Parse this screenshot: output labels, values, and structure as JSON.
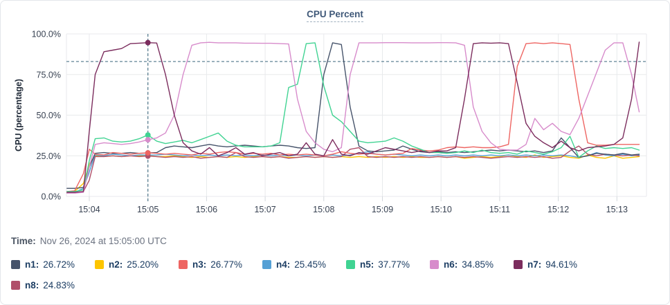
{
  "card": {
    "title": "CPU Percent",
    "time_row": {
      "label": "Time:",
      "value": "Nov 26, 2024 at 15:05:00 UTC"
    }
  },
  "colors": {
    "grid": "#e8eaec",
    "dashed_guides": "#4e7589",
    "axis_text": "#374151",
    "title_text": "#3f5878",
    "legend_text": "#1c3d63",
    "card_border": "#e3e6ea"
  },
  "legend": {
    "items": [
      {
        "name": "n1",
        "label": "n1:",
        "value": "26.72%",
        "color": "#46536a"
      },
      {
        "name": "n2",
        "label": "n2:",
        "value": "25.20%",
        "color": "#fdc500"
      },
      {
        "name": "n3",
        "label": "n3:",
        "value": "26.77%",
        "color": "#ee6562"
      },
      {
        "name": "n4",
        "label": "n4:",
        "value": "25.45%",
        "color": "#55a0d5"
      },
      {
        "name": "n5",
        "label": "n5:",
        "value": "37.77%",
        "color": "#40d392"
      },
      {
        "name": "n6",
        "label": "n6:",
        "value": "34.85%",
        "color": "#d78bcb"
      },
      {
        "name": "n7",
        "label": "n7:",
        "value": "94.61%",
        "color": "#7b2c5d"
      },
      {
        "name": "n8",
        "label": "n8:",
        "value": "24.83%",
        "color": "#b04f6a"
      }
    ]
  },
  "chart_data": {
    "type": "line",
    "title": "CPU Percent",
    "ylabel": "CPU (percentage)",
    "ylim": [
      0,
      100
    ],
    "ytick_values": [
      0,
      25,
      50,
      75,
      100
    ],
    "ytick_labels": [
      "0.0%",
      "25.0%",
      "50.0%",
      "75.0%",
      "100.0%"
    ],
    "xtick_values": [
      4,
      5,
      6,
      7,
      8,
      9,
      10,
      11,
      12,
      13
    ],
    "xtick_labels": [
      "15:04",
      "15:05",
      "15:06",
      "15:07",
      "15:08",
      "15:09",
      "15:10",
      "15:11",
      "15:12",
      "15:13"
    ],
    "x_unit": "minutes after 15:00 UTC",
    "grid": true,
    "legend_position": "bottom",
    "threshold_line": {
      "value": 83,
      "style": "dashed"
    },
    "crosshair": {
      "x": 5,
      "time": "15:05:00"
    },
    "x": [
      3.62,
      3.75,
      3.9,
      4.0,
      4.1,
      4.25,
      4.4,
      4.55,
      4.7,
      4.85,
      5.0,
      5.15,
      5.3,
      5.45,
      5.6,
      5.75,
      5.9,
      6.05,
      6.2,
      6.35,
      6.5,
      6.65,
      6.8,
      6.95,
      7.1,
      7.25,
      7.4,
      7.55,
      7.7,
      7.85,
      8.0,
      8.15,
      8.3,
      8.45,
      8.6,
      8.75,
      8.9,
      9.05,
      9.2,
      9.35,
      9.5,
      9.65,
      9.8,
      9.95,
      10.1,
      10.25,
      10.4,
      10.55,
      10.7,
      10.85,
      11.0,
      11.15,
      11.3,
      11.45,
      11.6,
      11.75,
      11.9,
      12.05,
      12.2,
      12.35,
      12.5,
      12.65,
      12.8,
      12.95,
      13.1,
      13.25,
      13.38
    ],
    "series": [
      {
        "name": "n1",
        "color": "#46536a",
        "value_at_crosshair": 26.72,
        "values": [
          5,
          5,
          5.5,
          18,
          26.5,
          27,
          26.5,
          26.5,
          27,
          26.5,
          26.72,
          27,
          30,
          31,
          30.5,
          30,
          31,
          32,
          31,
          30.5,
          31,
          31.5,
          31,
          30.5,
          31,
          31.5,
          31,
          30,
          29.5,
          30,
          75,
          94.5,
          93.5,
          55,
          31,
          28,
          27.5,
          28,
          28.5,
          31,
          29,
          27.5,
          27,
          27.5,
          27,
          27.5,
          27,
          27.5,
          28,
          28.5,
          28,
          28.5,
          28,
          27.5,
          28,
          27,
          28,
          36,
          30,
          24,
          25,
          26.5,
          26,
          25.5,
          26.5,
          25.5,
          26
        ]
      },
      {
        "name": "n2",
        "color": "#fdc500",
        "value_at_crosshair": 25.2,
        "values": [
          2.5,
          3,
          8,
          20,
          25,
          24.5,
          25,
          24.5,
          25,
          25,
          25.2,
          24.5,
          24.5,
          25,
          24.5,
          24,
          24.5,
          24,
          24.5,
          24,
          24.5,
          24,
          24.5,
          24.5,
          24,
          24.5,
          24,
          24,
          24.5,
          24,
          24.5,
          24,
          24.5,
          24,
          24.5,
          24,
          24.5,
          24,
          24.5,
          24,
          24.5,
          24,
          24,
          24.5,
          24,
          24.5,
          23.5,
          24,
          24.5,
          24,
          24.5,
          25.5,
          24.5,
          24,
          25.5,
          24,
          24.5,
          25,
          24,
          23.5,
          25.5,
          24,
          23.5,
          25,
          23.5,
          24,
          24.5
        ]
      },
      {
        "name": "n3",
        "color": "#ee6562",
        "value_at_crosshair": 26.77,
        "values": [
          3,
          3.5,
          14,
          29,
          26,
          25.5,
          27,
          26.5,
          26,
          26.5,
          26.77,
          26.5,
          26,
          26.5,
          26,
          25.5,
          26.5,
          26,
          27,
          27.5,
          27,
          26,
          26.5,
          26,
          26.5,
          25.5,
          26,
          25.5,
          26,
          25.5,
          25,
          26,
          27.5,
          26.5,
          26,
          26.5,
          26,
          25.5,
          26,
          26.5,
          29.5,
          28.5,
          28,
          28.5,
          30,
          30.5,
          30,
          30.5,
          30,
          30,
          30.5,
          32,
          80,
          94,
          94.5,
          94,
          94.5,
          94,
          93.5,
          60,
          33,
          31.5,
          31.5,
          32,
          32,
          32,
          32
        ]
      },
      {
        "name": "n4",
        "color": "#55a0d5",
        "value_at_crosshair": 25.45,
        "values": [
          2,
          2.5,
          5,
          15,
          25.5,
          25,
          26,
          25.5,
          25,
          25.5,
          25.45,
          25.5,
          26,
          25.5,
          25,
          25.5,
          25,
          25.5,
          25,
          25.5,
          25,
          25.5,
          25,
          25.5,
          25,
          25.5,
          25,
          25.5,
          25,
          25.5,
          25,
          25.5,
          25,
          25.5,
          26.5,
          27.5,
          26,
          25.5,
          26,
          25.5,
          25,
          25.5,
          25,
          25.5,
          25,
          25.5,
          25,
          25.5,
          25,
          25.5,
          25,
          25.5,
          25,
          25.5,
          25,
          25.5,
          25,
          25.5,
          25,
          24,
          25,
          27,
          25.5,
          25,
          26,
          25,
          25.5
        ]
      },
      {
        "name": "n5",
        "color": "#40d392",
        "value_at_crosshair": 37.77,
        "values": [
          3,
          3,
          4,
          22,
          35.5,
          36,
          34,
          33.5,
          34,
          35.5,
          37.77,
          34,
          32.5,
          33.5,
          34.5,
          33,
          35,
          37,
          39,
          34,
          31.5,
          30.5,
          30.5,
          30.5,
          31,
          33,
          67,
          69,
          94,
          94.5,
          68,
          50,
          46,
          40,
          34,
          33,
          33.5,
          34,
          36,
          34,
          31,
          29,
          27,
          27,
          26.5,
          27,
          28,
          27,
          28.5,
          27,
          26.5,
          27,
          26,
          28,
          27,
          26,
          27.5,
          30,
          37,
          24,
          28,
          31,
          29.5,
          30,
          29.5,
          30,
          28.5
        ]
      },
      {
        "name": "n6",
        "color": "#d78bcb",
        "value_at_crosshair": 34.85,
        "values": [
          2,
          2,
          2.5,
          18,
          32,
          33,
          32.5,
          32,
          32.5,
          33.5,
          34.85,
          36,
          39,
          50,
          75,
          93,
          94.5,
          94.8,
          94.5,
          94.5,
          94.5,
          94.3,
          94.3,
          94.2,
          94.2,
          94,
          93.8,
          60,
          40,
          33,
          29,
          27.5,
          30,
          75,
          94.5,
          94.5,
          94.5,
          94.6,
          94.6,
          94.6,
          94.5,
          94.5,
          94.5,
          94.6,
          94.6,
          94.5,
          93,
          55,
          40,
          33,
          29,
          28.5,
          28.5,
          32,
          48,
          41,
          45,
          40,
          38,
          48,
          62,
          76,
          90,
          94.5,
          94.5,
          75,
          52
        ]
      },
      {
        "name": "n7",
        "color": "#7b2c5d",
        "value_at_crosshair": 94.61,
        "values": [
          2.5,
          2.5,
          3,
          40,
          75,
          89,
          90,
          91,
          94,
          94.3,
          94.61,
          94.4,
          75,
          50,
          33,
          28,
          26,
          30,
          25,
          27,
          30,
          26,
          27,
          25,
          26,
          27,
          25,
          26,
          33,
          26,
          25,
          35,
          26,
          25,
          27,
          26,
          28,
          30,
          29,
          28,
          27,
          28,
          27,
          28,
          28,
          30,
          60,
          94,
          94.5,
          94.3,
          94.5,
          94,
          70,
          45,
          37,
          33,
          30,
          34,
          30,
          28,
          30,
          30.5,
          31,
          32,
          36,
          60,
          95
        ]
      },
      {
        "name": "n8",
        "color": "#b04f6a",
        "value_at_crosshair": 24.83,
        "values": [
          2,
          2,
          3,
          10,
          24.5,
          24.5,
          25,
          24.5,
          25,
          24.5,
          24.83,
          24.5,
          24,
          24.5,
          24,
          24.5,
          23.5,
          24,
          24.5,
          24,
          27,
          24.5,
          24,
          24.5,
          24,
          24.5,
          23.5,
          24,
          24.5,
          24,
          24.5,
          24,
          24.5,
          29,
          30,
          24.5,
          24,
          24.5,
          24,
          24.5,
          24,
          24.5,
          24,
          24.5,
          24,
          24.5,
          24,
          24.5,
          24,
          23.5,
          24,
          24.5,
          24,
          24.5,
          24,
          24.5,
          23.5,
          24,
          28,
          31,
          26,
          25,
          26,
          25.5,
          25,
          25.5,
          25
        ]
      }
    ]
  }
}
